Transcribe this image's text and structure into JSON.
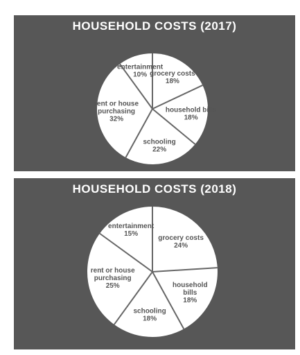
{
  "chart_data": [
    {
      "type": "pie",
      "title": "HOUSEHOLD COSTS (2017)",
      "slices": [
        {
          "label": "grocery costs",
          "value": 18,
          "value_label": "18%"
        },
        {
          "label": "household bills",
          "value": 18,
          "value_label": "18%"
        },
        {
          "label": "schooling",
          "value": 22,
          "value_label": "22%"
        },
        {
          "label": "rent or house purchasing",
          "value": 32,
          "value_label": "32%"
        },
        {
          "label": "entertainment",
          "value": 10,
          "value_label": "10%"
        }
      ],
      "start": "12 o'clock",
      "direction": "clockwise",
      "slice_color": "#ffffff",
      "divider_color": "#666666",
      "background_color": "#575757"
    },
    {
      "type": "pie",
      "title": "HOUSEHOLD COSTS (2018)",
      "slices": [
        {
          "label": "grocery costs",
          "value": 24,
          "value_label": "24%"
        },
        {
          "label": "household bills",
          "value": 18,
          "value_label": "18%"
        },
        {
          "label": "schooling",
          "value": 18,
          "value_label": "18%"
        },
        {
          "label": "rent or house purchasing",
          "value": 25,
          "value_label": "25%"
        },
        {
          "label": "entertainment",
          "value": 15,
          "value_label": "15%"
        }
      ],
      "start": "12 o'clock",
      "direction": "clockwise",
      "slice_color": "#ffffff",
      "divider_color": "#666666",
      "background_color": "#575757"
    }
  ]
}
